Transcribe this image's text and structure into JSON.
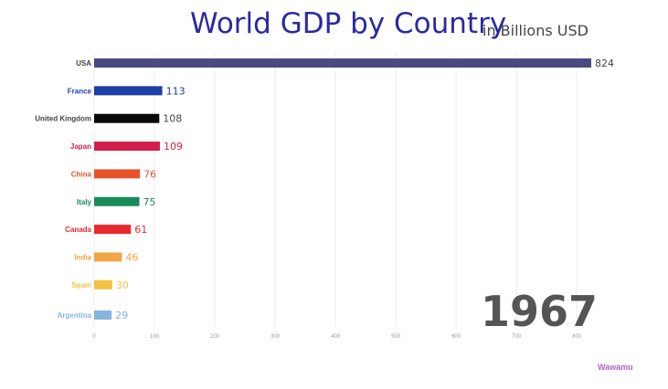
{
  "title": "World GDP by Country",
  "subtitle": "in Billions USD",
  "year_label": "1967",
  "watermark": "Wawamu",
  "chart_data": {
    "type": "bar",
    "orientation": "horizontal",
    "title": "World GDP by Country",
    "subtitle": "in Billions USD",
    "categories": [
      "USA",
      "France",
      "United Kingdom",
      "Japan",
      "China",
      "Italy",
      "Canada",
      "India",
      "Spain",
      "Argentina"
    ],
    "values": [
      824,
      113,
      108,
      109,
      76,
      75,
      61,
      46,
      30,
      29
    ],
    "colors": [
      "#4b4a80",
      "#1f3ea3",
      "#0a0a0a",
      "#d21f4a",
      "#e8532c",
      "#1a8a5a",
      "#e8282c",
      "#f2a546",
      "#f4c243",
      "#86b6e0"
    ],
    "x_ticks": [
      0,
      100,
      200,
      300,
      400,
      500,
      600,
      700,
      800
    ],
    "xlim": [
      0,
      824
    ],
    "grid": true,
    "legend": "none"
  }
}
